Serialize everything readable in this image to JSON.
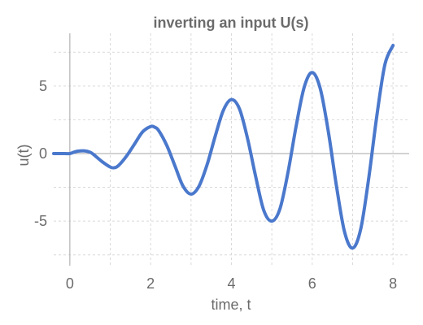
{
  "chart_data": {
    "type": "line",
    "title": "inverting an input U(s)",
    "xlabel": "time, t",
    "ylabel": "u(t)",
    "xlim": [
      -0.4,
      8.4
    ],
    "ylim": [
      -8.3,
      8.9
    ],
    "x_ticks": [
      0,
      2,
      4,
      6,
      8
    ],
    "y_ticks": [
      -5,
      0,
      5
    ],
    "x_tick_labels": [
      "0",
      "2",
      "4",
      "6",
      "8"
    ],
    "y_tick_labels": [
      "-5",
      "0",
      "5"
    ],
    "grid": true,
    "colors": {
      "line": "#4a78cc",
      "text": "#6b6b6b",
      "grid": "#d9d9d9",
      "zero_line": "#a6a6a6"
    },
    "series": [
      {
        "x": [
          -0.4,
          -0.2,
          0,
          0.1,
          0.2,
          0.35,
          0.5,
          0.6,
          0.8,
          1.0,
          1.1,
          1.2,
          1.4,
          1.6,
          1.8,
          2.0,
          2.1,
          2.2,
          2.4,
          2.6,
          2.8,
          3.0,
          3.2,
          3.4,
          3.6,
          3.8,
          4.0,
          4.2,
          4.4,
          4.6,
          4.8,
          5.0,
          5.2,
          5.4,
          5.6,
          5.8,
          6.0,
          6.2,
          6.4,
          6.6,
          6.8,
          7.0,
          7.2,
          7.4,
          7.6,
          7.8,
          8.0
        ],
        "y": [
          0,
          0,
          0,
          0.1,
          0.18,
          0.2,
          0.1,
          -0.1,
          -0.6,
          -1.0,
          -1.05,
          -0.9,
          -0.2,
          0.7,
          1.6,
          2.0,
          1.95,
          1.7,
          0.6,
          -0.9,
          -2.4,
          -3.0,
          -2.4,
          -0.8,
          1.3,
          3.2,
          4.0,
          3.3,
          1.1,
          -1.7,
          -4.2,
          -5.0,
          -4.1,
          -1.4,
          2.0,
          4.9,
          6.0,
          4.8,
          1.6,
          -2.4,
          -5.8,
          -7.0,
          -5.6,
          -1.8,
          2.8,
          6.6,
          8.0
        ]
      }
    ]
  }
}
